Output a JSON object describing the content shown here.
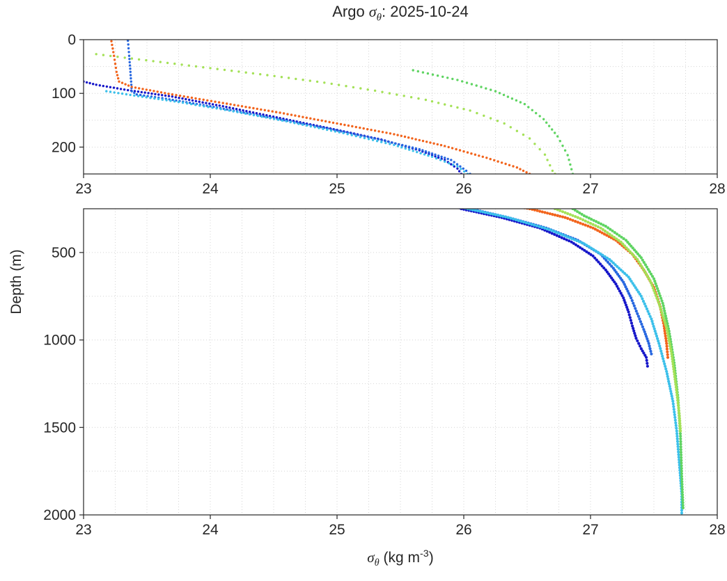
{
  "title": {
    "prefix": "Argo ",
    "sigma": "σ",
    "theta": "θ",
    "suffix": ": 2025-10-24"
  },
  "xlabel": {
    "sigma": "σ",
    "theta": "θ",
    "mid": " (kg m",
    "sup": "-3",
    "end": ")"
  },
  "ylabel": "Depth (m)",
  "chart_data": {
    "type": "scatter",
    "title": "Argo σ_θ: 2025-10-24",
    "xlabel": "σ_θ (kg m⁻³)",
    "ylabel": "Depth (m)",
    "x_range": [
      23,
      28
    ],
    "x_ticks": [
      23,
      24,
      25,
      26,
      27,
      28
    ],
    "x_minor_step": 0.25,
    "grid": true,
    "legend": "none",
    "panels": [
      {
        "name": "upper",
        "depth_range": [
          0,
          250
        ],
        "y_ticks": [
          0,
          100,
          200
        ],
        "y_minor_step": 50
      },
      {
        "name": "lower",
        "depth_range": [
          250,
          2000
        ],
        "y_ticks": [
          500,
          1000,
          1500,
          2000
        ],
        "y_minor_step": 250
      }
    ],
    "series": [
      {
        "name": "navy",
        "color": "#1717c9",
        "style": "dotted",
        "points": [
          [
            23.0,
            78
          ],
          [
            23.1,
            84
          ],
          [
            23.35,
            94
          ],
          [
            23.7,
            106
          ],
          [
            24.1,
            124
          ],
          [
            24.55,
            146
          ],
          [
            25.0,
            168
          ],
          [
            25.35,
            186
          ],
          [
            25.65,
            206
          ],
          [
            25.85,
            224
          ],
          [
            25.95,
            240
          ],
          [
            25.98,
            250
          ],
          [
            26.3,
            300
          ],
          [
            26.6,
            360
          ],
          [
            26.85,
            440
          ],
          [
            27.02,
            520
          ],
          [
            27.12,
            600
          ],
          [
            27.2,
            680
          ],
          [
            27.26,
            760
          ],
          [
            27.3,
            840
          ],
          [
            27.33,
            920
          ],
          [
            27.36,
            990
          ],
          [
            27.4,
            1050
          ],
          [
            27.44,
            1100
          ],
          [
            27.45,
            1150
          ]
        ]
      },
      {
        "name": "blue",
        "color": "#2767e0",
        "style": "dotted",
        "points": [
          [
            23.35,
            2
          ],
          [
            23.36,
            30
          ],
          [
            23.37,
            60
          ],
          [
            23.38,
            96
          ],
          [
            23.42,
            102
          ],
          [
            23.65,
            110
          ],
          [
            24.0,
            124
          ],
          [
            24.45,
            144
          ],
          [
            24.9,
            164
          ],
          [
            25.3,
            184
          ],
          [
            25.65,
            204
          ],
          [
            25.9,
            224
          ],
          [
            26.02,
            244
          ],
          [
            26.05,
            250
          ],
          [
            26.35,
            300
          ],
          [
            26.65,
            360
          ],
          [
            26.9,
            430
          ],
          [
            27.08,
            510
          ],
          [
            27.18,
            590
          ],
          [
            27.26,
            670
          ],
          [
            27.32,
            760
          ],
          [
            27.37,
            850
          ],
          [
            27.42,
            940
          ],
          [
            27.46,
            1020
          ],
          [
            27.48,
            1080
          ]
        ]
      },
      {
        "name": "cyan",
        "color": "#3cc0ea",
        "style": "dotted",
        "points": [
          [
            23.18,
            96
          ],
          [
            23.4,
            104
          ],
          [
            23.75,
            116
          ],
          [
            24.15,
            132
          ],
          [
            24.6,
            152
          ],
          [
            25.05,
            174
          ],
          [
            25.45,
            196
          ],
          [
            25.75,
            218
          ],
          [
            25.95,
            236
          ],
          [
            26.03,
            250
          ],
          [
            26.35,
            300
          ],
          [
            26.68,
            370
          ],
          [
            26.95,
            450
          ],
          [
            27.15,
            540
          ],
          [
            27.3,
            640
          ],
          [
            27.4,
            750
          ],
          [
            27.48,
            880
          ],
          [
            27.54,
            1020
          ],
          [
            27.6,
            1180
          ],
          [
            27.65,
            1350
          ],
          [
            27.68,
            1520
          ],
          [
            27.7,
            1700
          ],
          [
            27.72,
            1880
          ],
          [
            27.72,
            2005
          ]
        ]
      },
      {
        "name": "orange",
        "color": "#f2641c",
        "style": "dotted",
        "points": [
          [
            23.22,
            3
          ],
          [
            23.24,
            30
          ],
          [
            23.26,
            60
          ],
          [
            23.28,
            78
          ],
          [
            23.38,
            88
          ],
          [
            23.7,
            102
          ],
          [
            24.1,
            118
          ],
          [
            24.55,
            136
          ],
          [
            25.0,
            156
          ],
          [
            25.45,
            176
          ],
          [
            25.85,
            198
          ],
          [
            26.18,
            220
          ],
          [
            26.42,
            238
          ],
          [
            26.52,
            250
          ],
          [
            26.8,
            300
          ],
          [
            27.02,
            360
          ],
          [
            27.2,
            430
          ],
          [
            27.33,
            510
          ],
          [
            27.42,
            600
          ],
          [
            27.5,
            700
          ],
          [
            27.55,
            810
          ],
          [
            27.58,
            920
          ],
          [
            27.6,
            1020
          ],
          [
            27.61,
            1100
          ]
        ]
      },
      {
        "name": "green",
        "color": "#5fd462",
        "style": "dotted",
        "points": [
          [
            25.6,
            57
          ],
          [
            25.95,
            75
          ],
          [
            26.25,
            96
          ],
          [
            26.48,
            120
          ],
          [
            26.63,
            148
          ],
          [
            26.74,
            180
          ],
          [
            26.82,
            215
          ],
          [
            26.86,
            250
          ],
          [
            26.95,
            290
          ],
          [
            27.12,
            350
          ],
          [
            27.28,
            430
          ],
          [
            27.4,
            530
          ],
          [
            27.5,
            650
          ],
          [
            27.57,
            790
          ],
          [
            27.62,
            950
          ],
          [
            27.66,
            1130
          ],
          [
            27.69,
            1330
          ],
          [
            27.71,
            1550
          ],
          [
            27.72,
            1780
          ],
          [
            27.73,
            1960
          ]
        ]
      },
      {
        "name": "lightgreen",
        "color": "#a4e157",
        "style": "dotted",
        "points": [
          [
            23.1,
            27
          ],
          [
            23.55,
            40
          ],
          [
            24.0,
            53
          ],
          [
            24.45,
            66
          ],
          [
            24.9,
            80
          ],
          [
            25.3,
            95
          ],
          [
            25.7,
            112
          ],
          [
            26.05,
            132
          ],
          [
            26.32,
            156
          ],
          [
            26.52,
            184
          ],
          [
            26.64,
            214
          ],
          [
            26.7,
            244
          ],
          [
            26.72,
            250
          ],
          [
            26.9,
            300
          ],
          [
            27.08,
            360
          ],
          [
            27.24,
            440
          ],
          [
            27.37,
            540
          ],
          [
            27.47,
            660
          ],
          [
            27.54,
            790
          ],
          [
            27.6,
            930
          ],
          [
            27.64,
            1080
          ],
          [
            27.67,
            1240
          ],
          [
            27.7,
            1420
          ],
          [
            27.71,
            1520
          ]
        ]
      }
    ]
  }
}
